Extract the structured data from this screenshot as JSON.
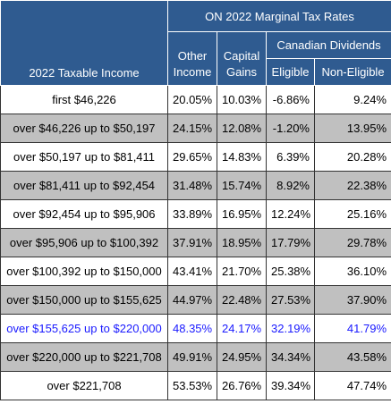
{
  "table": {
    "header": {
      "income": "2022 Taxable Income",
      "group": "ON 2022 Marginal Tax Rates",
      "other_income": [
        "Other",
        "Income"
      ],
      "capital_gains": [
        "Capital",
        "Gains"
      ],
      "dividends": "Canadian Dividends",
      "eligible": "Eligible",
      "non_eligible": "Non-Eligible"
    },
    "rows": [
      [
        "first $46,226",
        "20.05%",
        "10.03%",
        "-6.86%",
        "9.24%"
      ],
      [
        "over $46,226 up to $50,197",
        "24.15%",
        "12.08%",
        "-1.20%",
        "13.95%"
      ],
      [
        "over $50,197 up to $81,411",
        "29.65%",
        "14.83%",
        "6.39%",
        "20.28%"
      ],
      [
        "over $81,411 up to $92,454",
        "31.48%",
        "15.74%",
        "8.92%",
        "22.38%"
      ],
      [
        "over $92,454 up to $95,906",
        "33.89%",
        "16.95%",
        "12.24%",
        "25.16%"
      ],
      [
        "over $95,906 up to $100,392",
        "37.91%",
        "18.95%",
        "17.79%",
        "29.78%"
      ],
      [
        "over $100,392 up to $150,000",
        "43.41%",
        "21.70%",
        "25.38%",
        "36.10%"
      ],
      [
        "over $150,000 up to $155,625",
        "44.97%",
        "22.48%",
        "27.53%",
        "37.90%"
      ],
      [
        "over $155,625 up to $220,000",
        "48.35%",
        "24.17%",
        "32.19%",
        "41.79%"
      ],
      [
        "over $220,000 up to $221,708",
        "49.91%",
        "24.95%",
        "34.34%",
        "43.58%"
      ],
      [
        "over $221,708",
        "53.53%",
        "26.76%",
        "39.34%",
        "47.74%"
      ]
    ]
  }
}
